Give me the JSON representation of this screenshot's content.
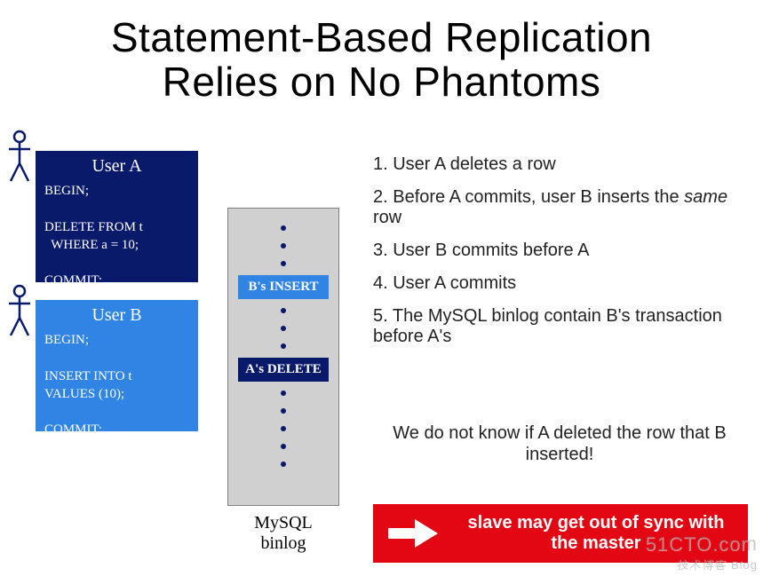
{
  "title_line1": "Statement-Based Replication",
  "title_line2": "Relies on No Phantoms",
  "colors": {
    "user_a_bg": "#0a1a6b",
    "user_b_bg": "#2f84e4",
    "binlog_bg": "#d0d0d0",
    "binlog_border": "#808080",
    "dot": "#0a1a6b",
    "b_insert_bg": "#2f84e4",
    "a_delete_bg": "#0a1a6b",
    "warning_bg": "#e30613",
    "text": "#222222",
    "title_color": "#000000",
    "stick_stroke": "#0a1a6b"
  },
  "user_a": {
    "header": "User A",
    "sql": "BEGIN;\n\nDELETE FROM t\n  WHERE a = 10;\n\nCOMMIT;"
  },
  "user_b": {
    "header": "User B",
    "sql": "BEGIN;\n\nINSERT INTO t\nVALUES (10);\n\nCOMMIT;"
  },
  "binlog": {
    "label": "MySQL\nbinlog",
    "dots_before": 3,
    "b_insert_label": "B's INSERT",
    "dots_mid": 3,
    "a_delete_label": "A's DELETE",
    "dots_after": 5
  },
  "steps": {
    "s1": "1. User A deletes a row",
    "s2_pre": "2. Before A commits, user B inserts the ",
    "s2_em": "same",
    "s2_post": " row",
    "s3": "3. User B commits before A",
    "s4": "4. User A commits",
    "s5": "5. The MySQL binlog contain B's transaction before A's"
  },
  "note": "We do not know if A deleted the row that B inserted!",
  "warning": "slave may get out of sync with the master",
  "watermark": {
    "main": "51CTO.com",
    "sub": "技术博客  Blog"
  },
  "typography": {
    "title_fontsize": 46,
    "body_fontsize": 20,
    "sql_fontsize": 15,
    "binlog_item_fontsize": 15
  }
}
